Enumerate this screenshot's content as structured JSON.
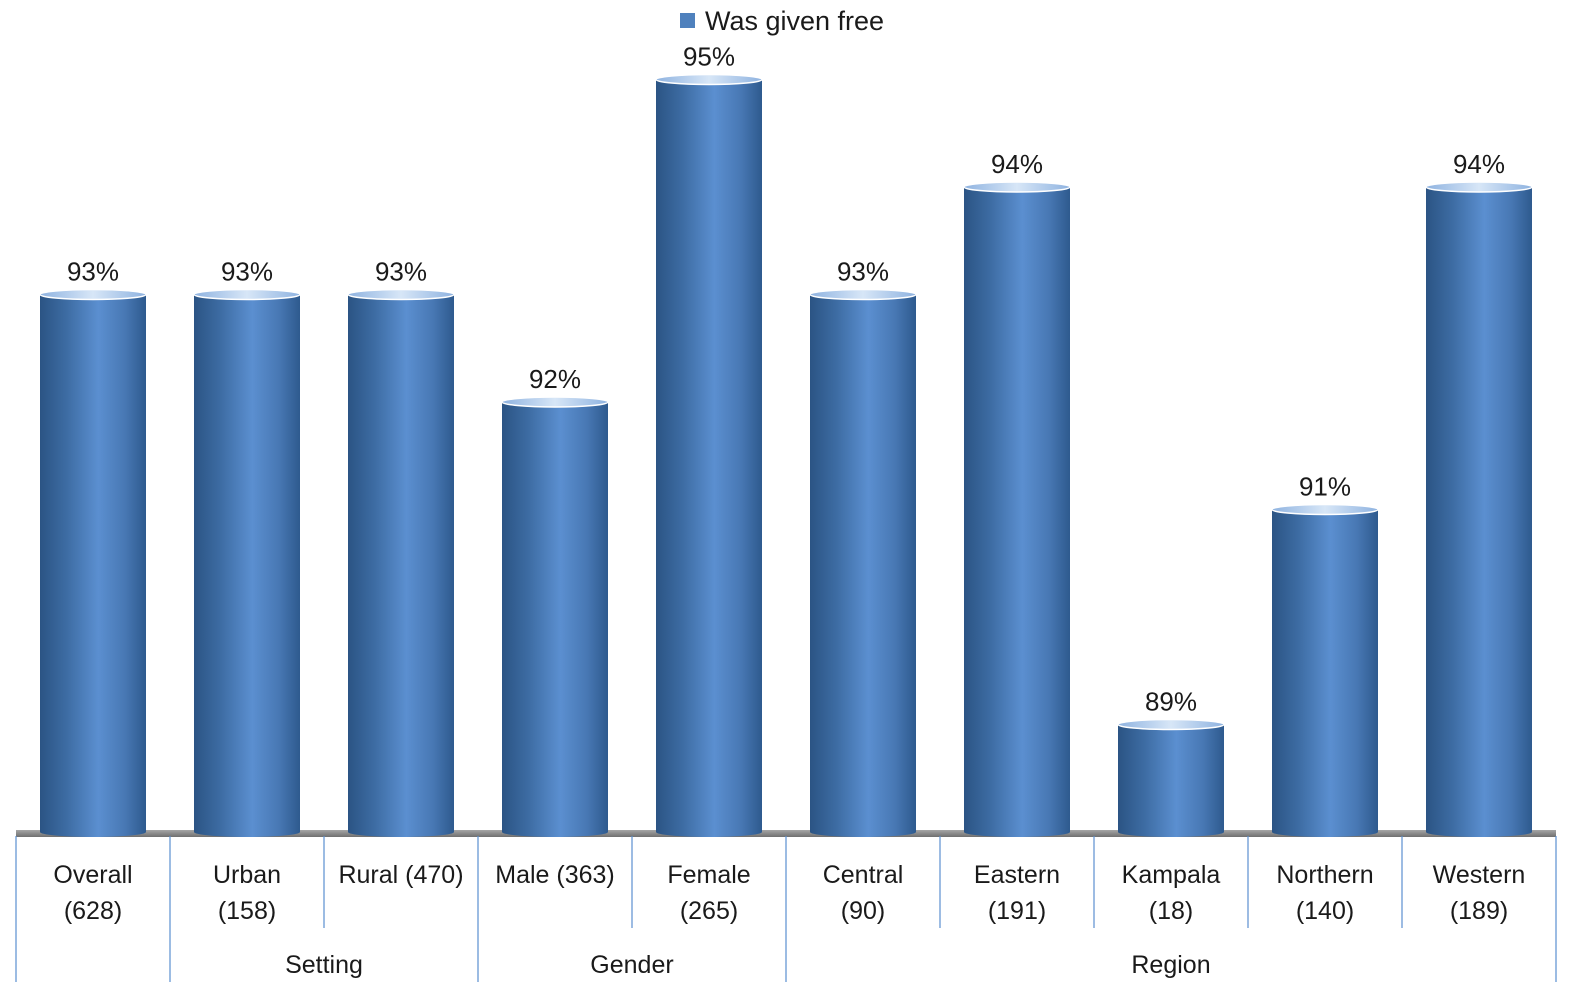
{
  "chart_data": {
    "type": "bar",
    "categories": [
      [
        "Overall",
        "(628)"
      ],
      [
        "Urban",
        "(158)"
      ],
      [
        "Rural (470)"
      ],
      [
        "Male (363)"
      ],
      [
        "Female",
        "(265)"
      ],
      [
        "Central",
        "(90)"
      ],
      [
        "Eastern",
        "(191)"
      ],
      [
        "Kampala",
        "(18)"
      ],
      [
        "Northern",
        "(140)"
      ],
      [
        "Western",
        "(189)"
      ]
    ],
    "groups": [
      {
        "label": "",
        "start": 0,
        "end": 0
      },
      {
        "label": "Setting",
        "start": 1,
        "end": 2
      },
      {
        "label": "Gender",
        "start": 3,
        "end": 4
      },
      {
        "label": "Region",
        "start": 5,
        "end": 9
      }
    ],
    "series": [
      {
        "name": "Was given free",
        "color": "#4f81bd",
        "values": [
          93,
          93,
          93,
          92,
          95,
          93,
          94,
          89,
          91,
          94
        ],
        "labels": [
          "93%",
          "93%",
          "93%",
          "92%",
          "95%",
          "93%",
          "94%",
          "89%",
          "91%",
          "94%"
        ]
      }
    ],
    "legend_position": "top-center",
    "grid": false,
    "bar_style": "cylinder"
  }
}
